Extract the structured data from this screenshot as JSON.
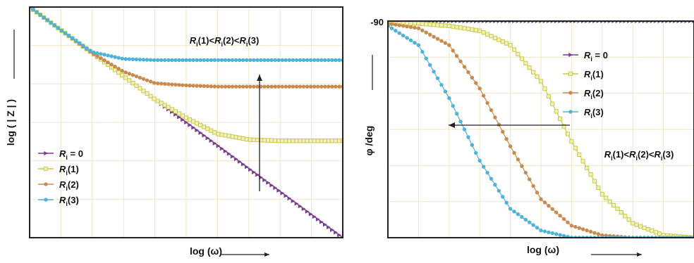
{
  "chart_data": [
    {
      "type": "line",
      "title": "",
      "xlabel": "log (ω)",
      "ylabel": "log ( | Z | )",
      "x_scale": "log ω (no tick labels)",
      "grid": true,
      "legend_position": "bottom-left",
      "annotation": {
        "parts": [
          "R",
          "i",
          "(1)<",
          "R",
          "i",
          "(2)<",
          "R",
          "i",
          "(3)"
        ],
        "arrow": "up"
      },
      "series": [
        {
          "name": "R i = 0",
          "label_parts": [
            "R",
            "i",
            " = 0"
          ],
          "color": "#7a3f8f",
          "marker": "triangle",
          "x": [
            0,
            1,
            2,
            3,
            4,
            5,
            6,
            7,
            8,
            9,
            10
          ],
          "values": [
            10,
            9.0,
            8.0,
            7.0,
            6.0,
            5.0,
            4.0,
            3.0,
            2.0,
            1.0,
            0.0
          ]
        },
        {
          "name": "R i(1)",
          "label_parts": [
            "R",
            "i",
            "(1)"
          ],
          "color": "#c9c94a",
          "marker": "square",
          "x": [
            0,
            1,
            2,
            3,
            4,
            5,
            6,
            7,
            8,
            9,
            10
          ],
          "values": [
            10,
            9.0,
            8.0,
            7.0,
            6.0,
            5.2,
            4.5,
            4.25,
            4.2,
            4.2,
            4.2
          ]
        },
        {
          "name": "R i(2)",
          "label_parts": [
            "R",
            "i",
            "(2)"
          ],
          "color": "#c98a4e",
          "marker": "circle",
          "x": [
            0,
            1,
            2,
            3,
            4,
            5,
            6,
            7,
            8,
            9,
            10
          ],
          "values": [
            10,
            9.0,
            8.0,
            7.2,
            6.7,
            6.6,
            6.55,
            6.55,
            6.55,
            6.55,
            6.55
          ]
        },
        {
          "name": "R i(3)",
          "label_parts": [
            "R",
            "i",
            "(3)"
          ],
          "color": "#4fb2d9",
          "marker": "circle",
          "x": [
            0,
            1,
            2,
            3,
            4,
            5,
            6,
            7,
            8,
            9,
            10
          ],
          "values": [
            10,
            9.0,
            8.05,
            7.75,
            7.7,
            7.7,
            7.7,
            7.7,
            7.7,
            7.7,
            7.7
          ]
        }
      ]
    },
    {
      "type": "line",
      "title": "",
      "xlabel": "log (ω)",
      "ylabel": "φ /deg",
      "y_tick_label": "-90",
      "x_scale": "log ω (no tick labels)",
      "grid": true,
      "legend_position": "top-right",
      "annotation": {
        "parts": [
          "R",
          "i",
          "(1)<",
          "R",
          "i",
          "(2)<",
          "R",
          "i",
          "(3)"
        ],
        "arrow": "left"
      },
      "series": [
        {
          "name": "R i = 0",
          "label_parts": [
            "R",
            "i",
            " = 0"
          ],
          "color": "#7a3f8f",
          "marker": "triangle",
          "x": [
            0,
            1,
            2,
            3,
            4,
            5,
            6,
            7,
            8,
            9,
            10
          ],
          "values": [
            -90,
            -90,
            -90,
            -90,
            -90,
            -90,
            -90,
            -90,
            -90,
            -90,
            -90
          ]
        },
        {
          "name": "R i(1)",
          "label_parts": [
            "R",
            "i",
            "(1)"
          ],
          "color": "#c9c94a",
          "marker": "square",
          "x": [
            0,
            1,
            2,
            3,
            4,
            5,
            6,
            7,
            8,
            9,
            10
          ],
          "values": [
            -89,
            -89,
            -88,
            -86,
            -80,
            -65,
            -40,
            -18,
            -6,
            -1,
            0
          ]
        },
        {
          "name": "R i(2)",
          "label_parts": [
            "R",
            "i",
            "(2)"
          ],
          "color": "#c98a4e",
          "marker": "circle",
          "x": [
            0,
            1,
            2,
            3,
            4,
            5,
            6,
            7,
            8,
            9,
            10
          ],
          "values": [
            -89,
            -87,
            -80,
            -62,
            -38,
            -16,
            -5,
            -1,
            0,
            0,
            0
          ]
        },
        {
          "name": "R i(3)",
          "label_parts": [
            "R",
            "i",
            "(3)"
          ],
          "color": "#4fb2d9",
          "marker": "circle",
          "x": [
            0,
            1,
            2,
            3,
            4,
            5,
            6,
            7,
            8,
            9,
            10
          ],
          "values": [
            -88,
            -80,
            -58,
            -32,
            -12,
            -3,
            0,
            0,
            0,
            0,
            0
          ]
        }
      ]
    }
  ]
}
